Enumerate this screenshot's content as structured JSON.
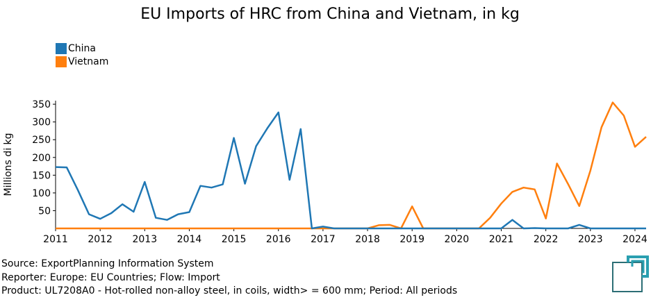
{
  "title": "EU Imports of HRC from China and Vietnam, in kg",
  "legend": [
    {
      "label": "China",
      "color": "#1f77b4"
    },
    {
      "label": "Vietnam",
      "color": "#ff7f0e"
    }
  ],
  "notes": {
    "source": "Source: ExportPlanning Information System",
    "reporter": "Reporter: Europe: EU Countries; Flow: Import",
    "product": "Product: UL7208A0 - Hot-rolled non-alloy steel, in coils, width> = 600 mm; Period: All periods"
  },
  "logo_icon": "exportplanning-logo-icon",
  "chart_data": {
    "type": "line",
    "title": "EU Imports of HRC from China and Vietnam, in kg",
    "ylabel": "Millions di kg",
    "xlabel": "",
    "xlim": [
      2011,
      2024.25
    ],
    "ylim": [
      0,
      360
    ],
    "yticks": [
      50,
      100,
      150,
      200,
      250,
      300,
      350
    ],
    "xticks": [
      2011,
      2012,
      2013,
      2014,
      2015,
      2016,
      2017,
      2018,
      2019,
      2020,
      2021,
      2022,
      2023,
      2024
    ],
    "x": [
      2011,
      2011.25,
      2011.5,
      2011.75,
      2012,
      2012.25,
      2012.5,
      2012.75,
      2013,
      2013.25,
      2013.5,
      2013.75,
      2014,
      2014.25,
      2014.5,
      2014.75,
      2015,
      2015.25,
      2015.5,
      2015.75,
      2016,
      2016.25,
      2016.5,
      2016.75,
      2017,
      2017.25,
      2017.5,
      2017.75,
      2018,
      2018.25,
      2018.5,
      2018.75,
      2019,
      2019.25,
      2019.5,
      2019.75,
      2020,
      2020.25,
      2020.5,
      2020.75,
      2021,
      2021.25,
      2021.5,
      2021.75,
      2022,
      2022.25,
      2022.5,
      2022.75,
      2023,
      2023.25,
      2023.5,
      2023.75,
      2024,
      2024.25
    ],
    "series": [
      {
        "name": "China",
        "color": "#1f77b4",
        "values": [
          173,
          172,
          108,
          40,
          27,
          43,
          68,
          47,
          131,
          30,
          24,
          40,
          46,
          120,
          115,
          124,
          255,
          126,
          232,
          282,
          327,
          137,
          280,
          0,
          5,
          0,
          0,
          0,
          0,
          0,
          0,
          0,
          0,
          0,
          0,
          0,
          0,
          0,
          0,
          0,
          0,
          24,
          0,
          1,
          0,
          0,
          0,
          10,
          0,
          0,
          0,
          0,
          0,
          0
        ]
      },
      {
        "name": "Vietnam",
        "color": "#ff7f0e",
        "values": [
          0,
          0,
          0,
          0,
          0,
          0,
          0,
          0,
          0,
          0,
          0,
          0,
          0,
          0,
          0,
          0,
          0,
          0,
          0,
          0,
          0,
          0,
          0,
          0,
          0,
          0,
          0,
          0,
          0,
          9,
          10,
          0,
          62,
          0,
          0,
          0,
          0,
          0,
          0,
          30,
          70,
          103,
          115,
          110,
          28,
          183,
          125,
          63,
          163,
          285,
          355,
          318,
          230,
          258
        ]
      }
    ]
  }
}
